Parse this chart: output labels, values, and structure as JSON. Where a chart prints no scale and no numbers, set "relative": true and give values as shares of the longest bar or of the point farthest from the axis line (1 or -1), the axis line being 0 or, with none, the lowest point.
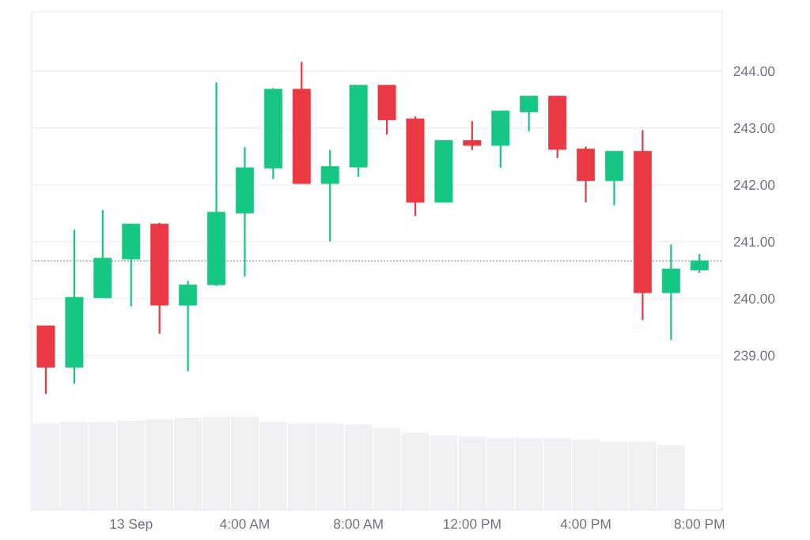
{
  "chart_data": [
    {
      "type": "candlestick",
      "x": [
        -3,
        -2,
        -1,
        0,
        1,
        2,
        3,
        4,
        5,
        6,
        7,
        8,
        9,
        10,
        11,
        12,
        13,
        14,
        15,
        16,
        17,
        18,
        19,
        20
      ],
      "ohlc": [
        [
          239.52,
          239.52,
          238.32,
          238.79
        ],
        [
          238.79,
          241.21,
          238.5,
          240.02
        ],
        [
          240.01,
          241.55,
          240.01,
          240.71
        ],
        [
          240.69,
          241.31,
          239.86,
          241.31
        ],
        [
          241.31,
          241.33,
          239.38,
          239.88
        ],
        [
          239.88,
          240.31,
          238.72,
          240.24
        ],
        [
          240.24,
          243.8,
          240.22,
          241.52
        ],
        [
          241.5,
          242.66,
          240.39,
          242.3
        ],
        [
          242.29,
          243.7,
          242.1,
          243.68
        ],
        [
          243.68,
          244.16,
          242.02,
          242.02
        ],
        [
          242.02,
          242.61,
          241.0,
          242.32
        ],
        [
          242.31,
          243.75,
          242.14,
          243.75
        ],
        [
          243.75,
          243.75,
          242.88,
          243.14
        ],
        [
          243.16,
          243.2,
          241.45,
          241.69
        ],
        [
          241.69,
          242.78,
          241.69,
          242.78
        ],
        [
          242.78,
          243.12,
          242.61,
          242.69
        ],
        [
          242.69,
          243.3,
          242.3,
          243.3
        ],
        [
          243.28,
          243.56,
          242.94,
          243.56
        ],
        [
          243.56,
          243.56,
          242.47,
          242.62
        ],
        [
          242.63,
          242.67,
          241.69,
          242.07
        ],
        [
          242.07,
          242.59,
          241.64,
          242.59
        ],
        [
          242.59,
          242.96,
          239.62,
          240.1
        ],
        [
          240.1,
          240.95,
          239.27,
          240.52
        ],
        [
          240.5,
          240.78,
          240.45,
          240.66
        ]
      ],
      "colors": [
        "#ea3943",
        "#16c784",
        "#16c784",
        "#16c784",
        "#ea3943",
        "#16c784",
        "#16c784",
        "#16c784",
        "#16c784",
        "#ea3943",
        "#16c784",
        "#16c784",
        "#ea3943",
        "#ea3943",
        "#16c784",
        "#ea3943",
        "#16c784",
        "#16c784",
        "#ea3943",
        "#ea3943",
        "#16c784",
        "#ea3943",
        "#16c784",
        "#16c784"
      ],
      "xlim": [
        -3.5,
        20.8
      ],
      "xticks": [
        {
          "value": 0,
          "label": "13 Sep"
        },
        {
          "value": 4,
          "label": "4:00 AM"
        },
        {
          "value": 8,
          "label": "8:00 AM"
        },
        {
          "value": 12,
          "label": "12:00 PM"
        },
        {
          "value": 16,
          "label": "4:00 PM"
        },
        {
          "value": 20,
          "label": "8:00 PM"
        }
      ],
      "ylim": [
        236.28,
        245.04
      ],
      "yticks": [
        {
          "value": 239,
          "label": "239.00"
        },
        {
          "value": 240,
          "label": "240.00"
        },
        {
          "value": 241,
          "label": "241.00"
        },
        {
          "value": 242,
          "label": "242.00"
        },
        {
          "value": 243,
          "label": "243.00"
        },
        {
          "value": 244,
          "label": "244.00"
        }
      ],
      "grid": "y",
      "ref_lines": [
        {
          "axis": "y",
          "value": 240.66,
          "color": "#8a919e",
          "line_style": "dotted"
        }
      ]
    },
    {
      "type": "bar",
      "relative": true,
      "x": [
        -3,
        -2,
        -1,
        0,
        1,
        2,
        3,
        4,
        5,
        6,
        7,
        8,
        9,
        10,
        11,
        12,
        13,
        14,
        15,
        16,
        17,
        18,
        19
      ],
      "values": [
        0.929,
        0.943,
        0.943,
        0.957,
        0.972,
        0.986,
        1,
        1,
        0.943,
        0.929,
        0.929,
        0.915,
        0.877,
        0.829,
        0.801,
        0.787,
        0.773,
        0.773,
        0.773,
        0.758,
        0.73,
        0.73,
        0.697
      ],
      "color": "#eff1f4",
      "xlim": [
        -3.5,
        20.8
      ]
    }
  ]
}
